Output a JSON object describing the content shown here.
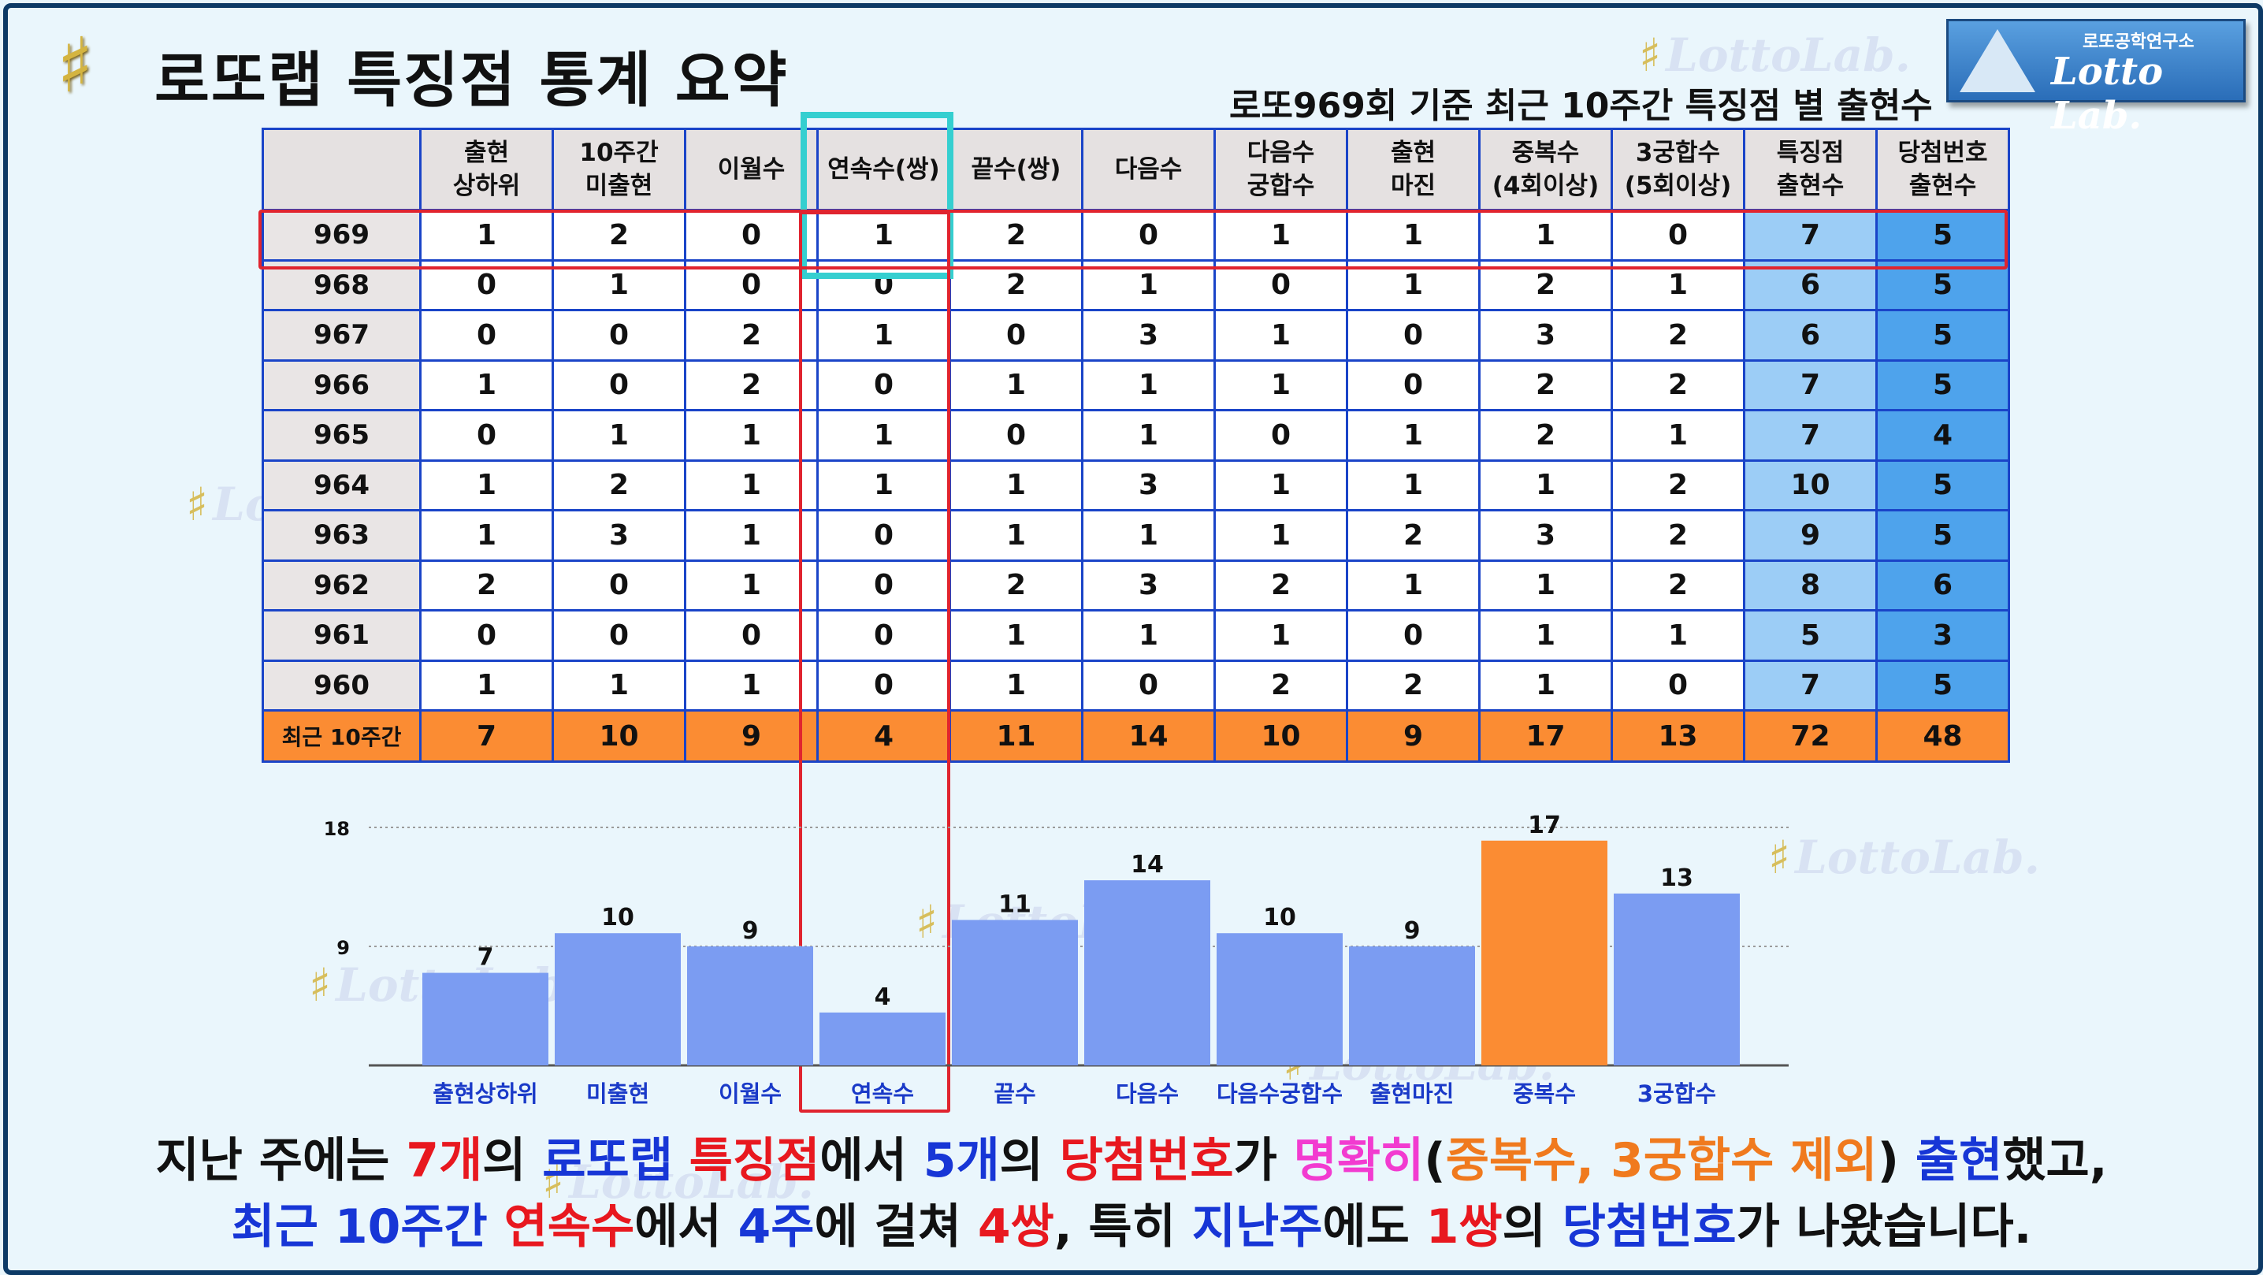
{
  "title": "로또랩 특징점 통계 요약",
  "subtitle": "로또969회 기준 최근 10주간 특징점 별 출현수",
  "logo": {
    "small": "로또공학연구소",
    "big": "Lotto Lab."
  },
  "watermark": "LottoLab.",
  "colors": {
    "border": "#1a44c8",
    "header_bg": "#e5e1e1",
    "total_row": "#fb8c33",
    "special_col": "#9ccdf6",
    "winning_col": "#4ea3ec",
    "bar": "#7b9cf2",
    "bar_highlight": "#fb8c33",
    "highlight_box": "#e0242f",
    "cyan_box": "#35cfd0"
  },
  "table": {
    "headers": [
      [
        ""
      ],
      [
        "출현",
        "상하위"
      ],
      [
        "10주간",
        "미출현"
      ],
      [
        "이월수"
      ],
      [
        "연속수(쌍)"
      ],
      [
        "끝수(쌍)"
      ],
      [
        "다음수"
      ],
      [
        "다음수",
        "궁합수"
      ],
      [
        "출현",
        "마진"
      ],
      [
        "중복수",
        "(4회이상)"
      ],
      [
        "3궁합수",
        "(5회이상)"
      ],
      [
        "특징점",
        "출현수"
      ],
      [
        "당첨번호",
        "출현수"
      ]
    ],
    "rows": [
      [
        "969",
        "1",
        "2",
        "0",
        "1",
        "2",
        "0",
        "1",
        "1",
        "1",
        "0",
        "7",
        "5"
      ],
      [
        "968",
        "0",
        "1",
        "0",
        "0",
        "2",
        "1",
        "0",
        "1",
        "2",
        "1",
        "6",
        "5"
      ],
      [
        "967",
        "0",
        "0",
        "2",
        "1",
        "0",
        "3",
        "1",
        "0",
        "3",
        "2",
        "6",
        "5"
      ],
      [
        "966",
        "1",
        "0",
        "2",
        "0",
        "1",
        "1",
        "1",
        "0",
        "2",
        "2",
        "7",
        "5"
      ],
      [
        "965",
        "0",
        "1",
        "1",
        "1",
        "0",
        "1",
        "0",
        "1",
        "2",
        "1",
        "7",
        "4"
      ],
      [
        "964",
        "1",
        "2",
        "1",
        "1",
        "1",
        "3",
        "1",
        "1",
        "1",
        "2",
        "10",
        "5"
      ],
      [
        "963",
        "1",
        "3",
        "1",
        "0",
        "1",
        "1",
        "1",
        "2",
        "3",
        "2",
        "9",
        "5"
      ],
      [
        "962",
        "2",
        "0",
        "1",
        "0",
        "2",
        "3",
        "2",
        "1",
        "1",
        "2",
        "8",
        "6"
      ],
      [
        "961",
        "0",
        "0",
        "0",
        "0",
        "1",
        "1",
        "1",
        "0",
        "1",
        "1",
        "5",
        "3"
      ],
      [
        "960",
        "1",
        "1",
        "1",
        "0",
        "1",
        "0",
        "2",
        "2",
        "1",
        "0",
        "7",
        "5"
      ]
    ],
    "total": [
      "최근 10주간",
      "7",
      "10",
      "9",
      "4",
      "11",
      "14",
      "10",
      "9",
      "17",
      "13",
      "72",
      "48"
    ]
  },
  "chart_data": {
    "type": "bar",
    "categories": [
      "출현상하위",
      "미출현",
      "이월수",
      "연속수",
      "끝수",
      "다음수",
      "다음수궁합수",
      "출현마진",
      "중복수",
      "3궁합수"
    ],
    "values": [
      7,
      10,
      9,
      4,
      11,
      14,
      10,
      9,
      17,
      13
    ],
    "highlight_index": 8,
    "ylim": [
      0,
      18
    ],
    "yticks": [
      9,
      18
    ],
    "grid": true,
    "data_labels": true
  },
  "caption": {
    "line1": [
      {
        "t": "지난 주에는 ",
        "c": ""
      },
      {
        "t": "7개",
        "c": "red"
      },
      {
        "t": "의 ",
        "c": ""
      },
      {
        "t": "로또랩",
        "c": "blue"
      },
      {
        "t": " ",
        "c": ""
      },
      {
        "t": "특징점",
        "c": "red"
      },
      {
        "t": "에서 ",
        "c": ""
      },
      {
        "t": "5개",
        "c": "blue"
      },
      {
        "t": "의 ",
        "c": ""
      },
      {
        "t": "당첨번호",
        "c": "red"
      },
      {
        "t": "가 ",
        "c": ""
      },
      {
        "t": "명확히",
        "c": "pink"
      },
      {
        "t": "(",
        "c": ""
      },
      {
        "t": "중복수, 3궁합수 제외",
        "c": "orange"
      },
      {
        "t": ") ",
        "c": ""
      },
      {
        "t": "출현",
        "c": "blue"
      },
      {
        "t": "했고,",
        "c": ""
      }
    ],
    "line2": [
      {
        "t": "최근 10주간",
        "c": "blue"
      },
      {
        "t": " ",
        "c": ""
      },
      {
        "t": "연속수",
        "c": "red"
      },
      {
        "t": "에서 ",
        "c": ""
      },
      {
        "t": "4주",
        "c": "blue"
      },
      {
        "t": "에 걸쳐 ",
        "c": ""
      },
      {
        "t": "4쌍",
        "c": "red"
      },
      {
        "t": ", 특히 ",
        "c": ""
      },
      {
        "t": "지난주",
        "c": "blue"
      },
      {
        "t": "에도 ",
        "c": ""
      },
      {
        "t": "1쌍",
        "c": "red"
      },
      {
        "t": "의 ",
        "c": ""
      },
      {
        "t": "당첨번호",
        "c": "blue"
      },
      {
        "t": "가 나왔습니다.",
        "c": ""
      }
    ]
  }
}
